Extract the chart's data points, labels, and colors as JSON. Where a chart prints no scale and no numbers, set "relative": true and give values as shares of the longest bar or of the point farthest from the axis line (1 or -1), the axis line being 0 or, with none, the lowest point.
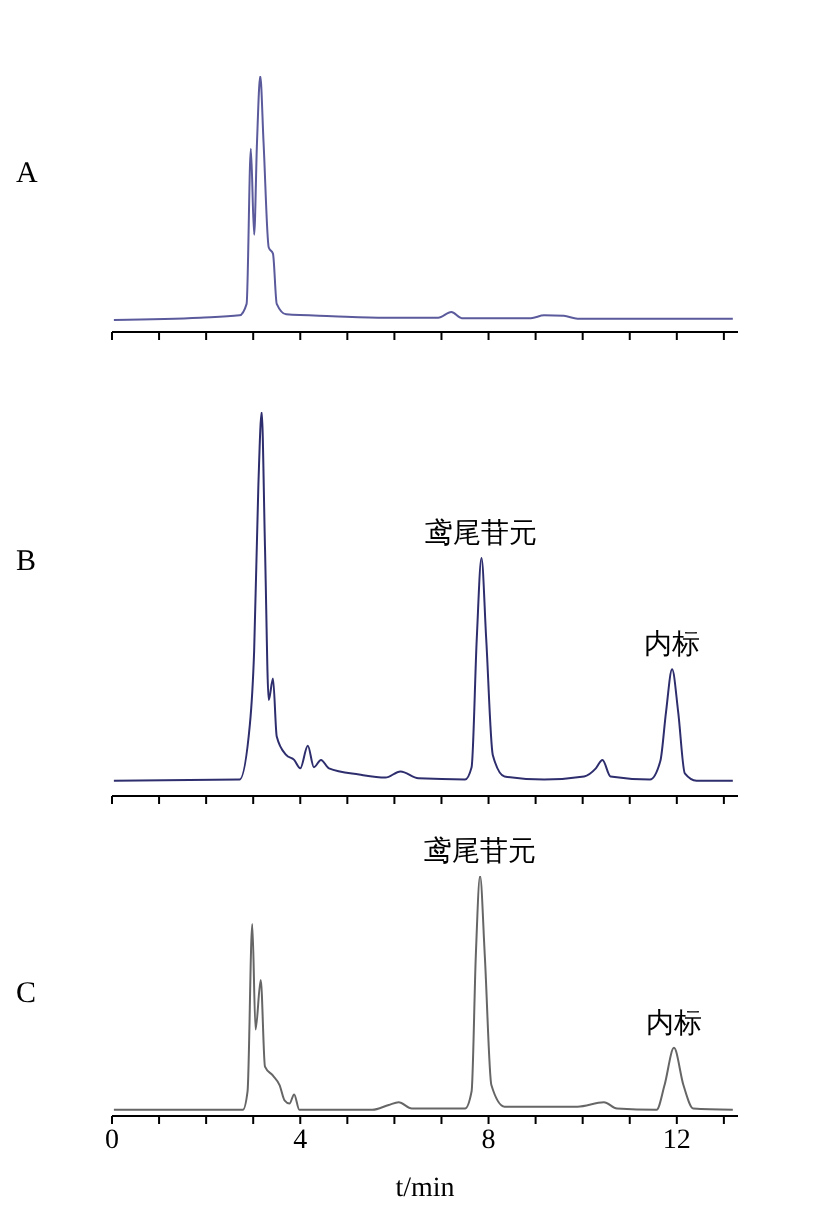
{
  "chart_data": [
    {
      "type": "line",
      "title": "A",
      "relative": true,
      "marker": "none",
      "tick_labels": false,
      "xlim": [
        0,
        13.3
      ],
      "xticks": [
        {
          "value": 0,
          "label": null
        },
        {
          "value": 1,
          "label": null
        },
        {
          "value": 2,
          "label": null
        },
        {
          "value": 3,
          "label": null
        },
        {
          "value": 4,
          "label": null
        },
        {
          "value": 5,
          "label": null
        },
        {
          "value": 6,
          "label": null
        },
        {
          "value": 7,
          "label": null
        },
        {
          "value": 8,
          "label": null
        },
        {
          "value": 9,
          "label": null
        },
        {
          "value": 10,
          "label": null
        },
        {
          "value": 11,
          "label": null
        },
        {
          "value": 12,
          "label": null
        },
        {
          "value": 13,
          "label": null
        }
      ],
      "series": [
        {
          "color": "#5a5a9c",
          "x": [
            0.04,
            1.87,
            2.71,
            2.86,
            2.95,
            3.02,
            3.08,
            3.15,
            3.22,
            3.33,
            3.42,
            3.5,
            3.7,
            4.68,
            5.81,
            6.93,
            7.21,
            7.43,
            8.9,
            9.18,
            9.6,
            9.89,
            13.19
          ],
          "values": [
            0.047,
            0.056,
            0.065,
            0.11,
            0.716,
            0.38,
            0.737,
            1,
            0.74,
            0.33,
            0.306,
            0.11,
            0.069,
            0.062,
            0.056,
            0.056,
            0.078,
            0.054,
            0.054,
            0.065,
            0.063,
            0.052,
            0.052
          ]
        }
      ]
    },
    {
      "type": "line",
      "title": "B",
      "relative": true,
      "marker": "none",
      "tick_labels": false,
      "xlim": [
        0,
        13.3
      ],
      "xticks": [
        {
          "value": 0,
          "label": null
        },
        {
          "value": 1,
          "label": null
        },
        {
          "value": 2,
          "label": null
        },
        {
          "value": 3,
          "label": null
        },
        {
          "value": 4,
          "label": null
        },
        {
          "value": 5,
          "label": null
        },
        {
          "value": 6,
          "label": null
        },
        {
          "value": 7,
          "label": null
        },
        {
          "value": 8,
          "label": null
        },
        {
          "value": 9,
          "label": null
        },
        {
          "value": 10,
          "label": null
        },
        {
          "value": 11,
          "label": null
        },
        {
          "value": 12,
          "label": null
        },
        {
          "value": 13,
          "label": null
        }
      ],
      "annotations": [
        {
          "text": "鸢尾苷元",
          "x": 7.85,
          "y": 0.62
        },
        {
          "text": "内标",
          "x": 11.9,
          "y": 0.33
        }
      ],
      "series": [
        {
          "color": "#2e2e6e",
          "x": [
            0.04,
            2.71,
            2.93,
            3.02,
            3.11,
            3.18,
            3.25,
            3.33,
            3.42,
            3.5,
            3.7,
            3.87,
            4.0,
            4.16,
            4.29,
            4.44,
            4.61,
            5.25,
            5.81,
            6.13,
            6.51,
            7.5,
            7.64,
            7.75,
            7.85,
            7.95,
            8.09,
            8.34,
            9.18,
            10.03,
            10.28,
            10.42,
            10.59,
            11.43,
            11.65,
            11.77,
            11.9,
            12.03,
            12.17,
            12.42,
            13.19
          ],
          "values": [
            0.04,
            0.043,
            0.187,
            0.378,
            0.81,
            1,
            0.65,
            0.25,
            0.306,
            0.155,
            0.107,
            0.094,
            0.072,
            0.131,
            0.075,
            0.094,
            0.072,
            0.056,
            0.048,
            0.064,
            0.046,
            0.043,
            0.075,
            0.41,
            0.62,
            0.41,
            0.107,
            0.051,
            0.043,
            0.051,
            0.072,
            0.094,
            0.051,
            0.043,
            0.091,
            0.218,
            0.33,
            0.218,
            0.059,
            0.04,
            0.04
          ]
        }
      ]
    },
    {
      "type": "line",
      "title": "C",
      "xlabel": "t/min",
      "relative": true,
      "marker": "none",
      "tick_labels": "x",
      "xlim": [
        0,
        13.3
      ],
      "xticks": [
        0,
        {
          "value": 1,
          "label": null
        },
        {
          "value": 2,
          "label": null
        },
        {
          "value": 3,
          "label": null
        },
        4,
        {
          "value": 5,
          "label": null
        },
        {
          "value": 6,
          "label": null
        },
        {
          "value": 7,
          "label": null
        },
        8,
        {
          "value": 9,
          "label": null
        },
        {
          "value": 10,
          "label": null
        },
        {
          "value": 11,
          "label": null
        },
        12,
        {
          "value": 13,
          "label": null
        }
      ],
      "annotations": [
        {
          "text": "鸢尾苷元",
          "x": 7.82,
          "y": 1
        },
        {
          "text": "内标",
          "x": 11.94,
          "y": 0.284
        }
      ],
      "series": [
        {
          "color": "#666666",
          "x": [
            0.04,
            2.78,
            2.88,
            2.98,
            3.05,
            3.16,
            3.25,
            3.42,
            3.56,
            3.67,
            3.77,
            3.87,
            3.98,
            5.53,
            5.88,
            6.09,
            6.37,
            7.5,
            7.64,
            7.73,
            7.82,
            7.92,
            8.06,
            8.34,
            9.89,
            10.45,
            10.73,
            11.57,
            11.74,
            11.94,
            12.14,
            12.35,
            13.19
          ],
          "values": [
            0.026,
            0.026,
            0.103,
            0.8,
            0.36,
            0.567,
            0.206,
            0.168,
            0.129,
            0.064,
            0.052,
            0.09,
            0.026,
            0.026,
            0.046,
            0.057,
            0.031,
            0.031,
            0.103,
            0.67,
            1,
            0.67,
            0.129,
            0.039,
            0.039,
            0.057,
            0.031,
            0.026,
            0.129,
            0.284,
            0.129,
            0.031,
            0.026
          ]
        }
      ]
    }
  ]
}
